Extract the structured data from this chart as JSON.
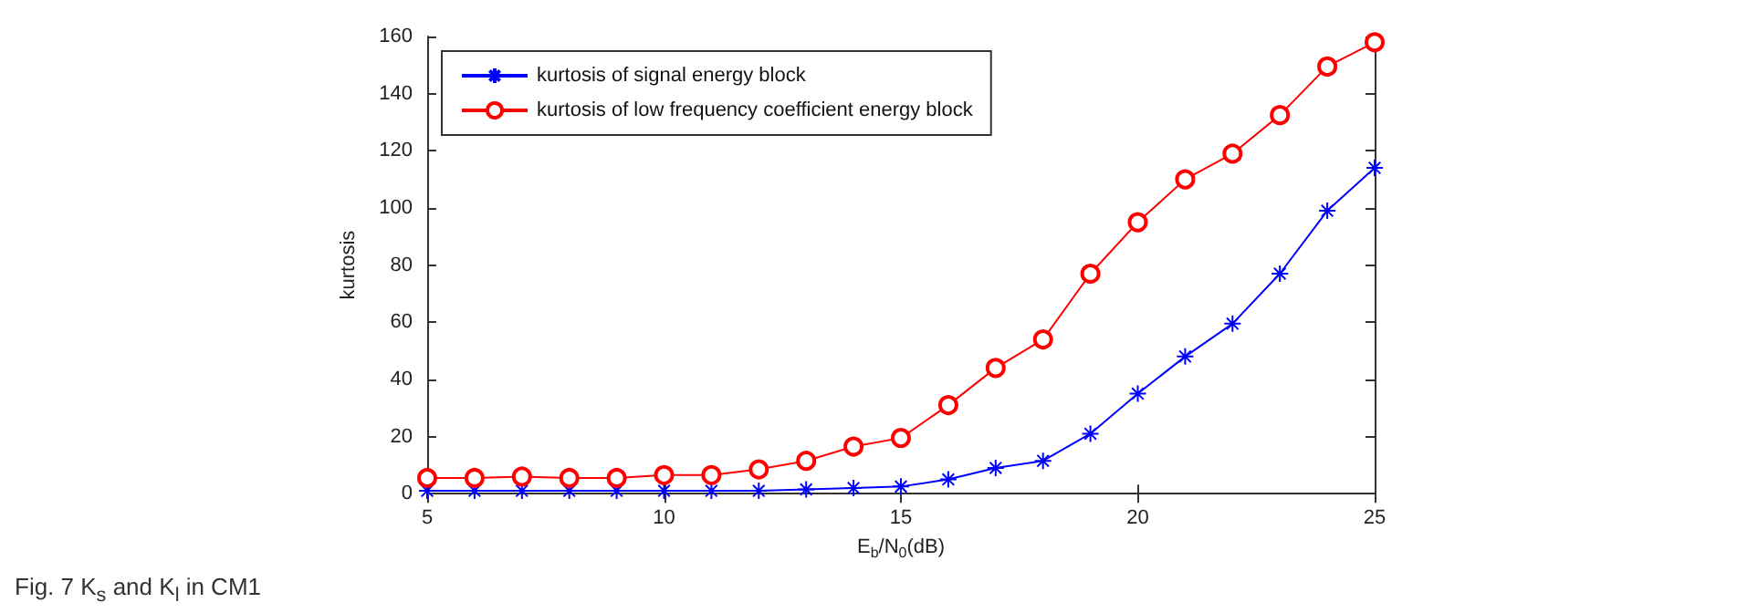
{
  "chart_data": {
    "type": "line",
    "xlabel": "E$_{b}$/N$_{0}$(dB)",
    "ylabel": "kurtosis",
    "x": [
      5,
      6,
      7,
      8,
      9,
      10,
      11,
      12,
      13,
      14,
      15,
      16,
      17,
      18,
      19,
      20,
      21,
      22,
      23,
      24,
      25
    ],
    "series": [
      {
        "name": "kurtosis of signal energy block",
        "color": "#0000ff",
        "marker": "cross",
        "values": [
          1,
          1,
          1,
          1,
          1,
          1,
          1,
          1,
          1.5,
          2,
          2.5,
          5,
          9,
          11.5,
          21,
          35,
          48,
          59.5,
          77,
          99,
          114
        ]
      },
      {
        "name": "kurtosis of low frequency coefficient energy block",
        "color": "#ff0000",
        "marker": "circle",
        "values": [
          5.5,
          5.5,
          6,
          5.5,
          5.5,
          6.5,
          6.5,
          8.5,
          11.5,
          16.5,
          19.5,
          31,
          44,
          54,
          77,
          95,
          110,
          119,
          132.5,
          149.5,
          158
        ]
      }
    ],
    "xlim": [
      5,
      25
    ],
    "xticks": [
      5,
      10,
      15,
      20,
      25
    ],
    "ylim": [
      0,
      160
    ],
    "yticks": [
      0,
      20,
      40,
      60,
      80,
      100,
      120,
      140,
      160
    ],
    "grid": false,
    "legend": "top left",
    "line_style": "solid",
    "annotations": [
      "Fig. 7 K$_{s}$ and K$_{l}$ in CM1"
    ]
  }
}
